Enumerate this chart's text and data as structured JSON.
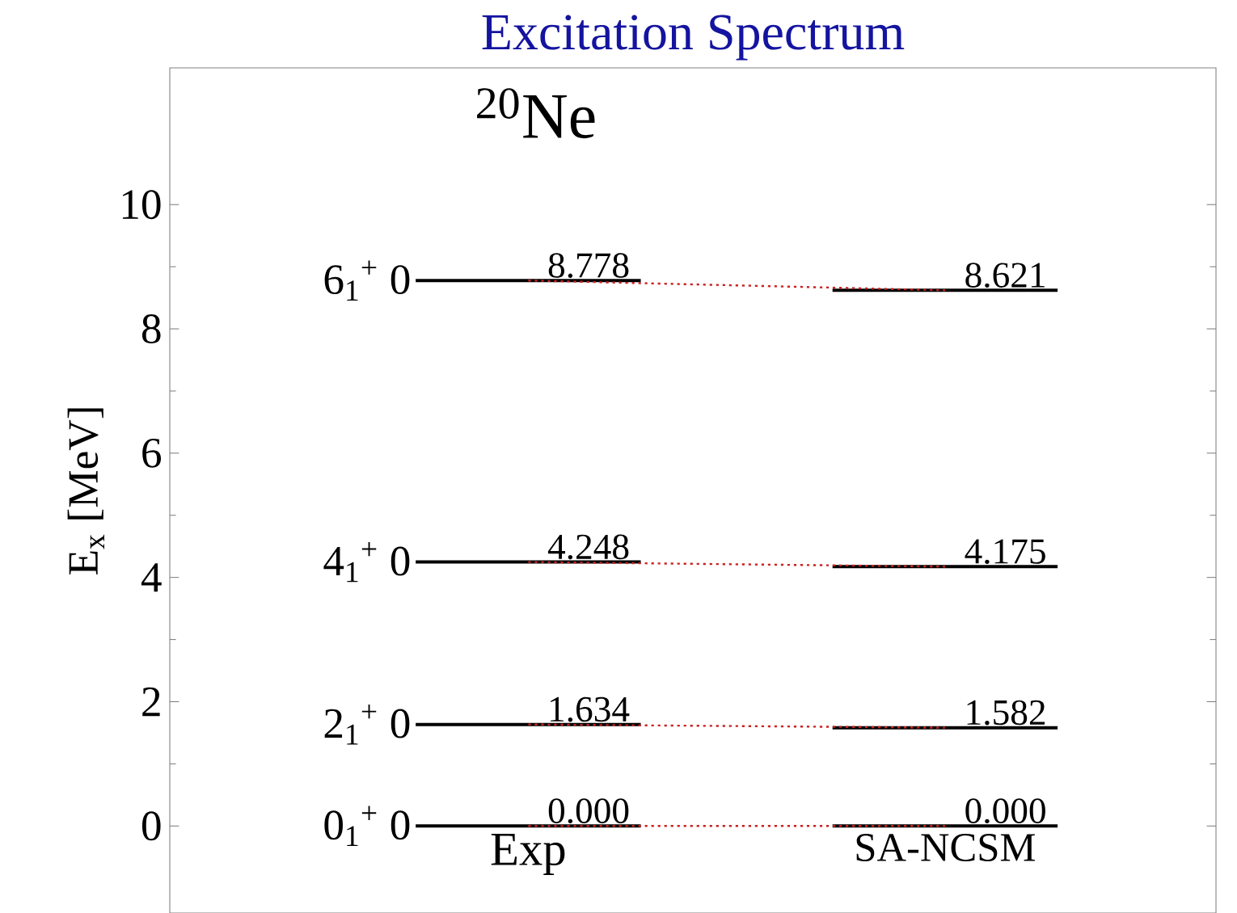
{
  "chart_data": {
    "type": "line",
    "title": "Excitation Spectrum",
    "subtitle": "$^{20}$Ne",
    "ylabel": "E$_{x}$ [MeV]",
    "categories": [
      "Exp",
      "SA-NCSM"
    ],
    "ylim": [
      -1.4,
      12.2
    ],
    "yticks": [
      0,
      2,
      4,
      6,
      8,
      10
    ],
    "line_style": "dotted",
    "series": [
      {
        "name": "0$_{1}$$^{+}$ 0",
        "color": "#cc2222",
        "values": [
          0.0,
          0.0
        ],
        "value_labels": [
          "0.000",
          "0.000"
        ]
      },
      {
        "name": "2$_{1}$$^{+}$ 0",
        "color": "#cc2222",
        "values": [
          1.634,
          1.582
        ],
        "value_labels": [
          "1.634",
          "1.582"
        ]
      },
      {
        "name": "4$_{1}$$^{+}$ 0",
        "color": "#cc2222",
        "values": [
          4.248,
          4.175
        ],
        "value_labels": [
          "4.248",
          "4.175"
        ]
      },
      {
        "name": "6$_{1}$$^{+}$ 0",
        "color": "#cc2222",
        "values": [
          8.778,
          8.621
        ],
        "value_labels": [
          "8.778",
          "8.621"
        ]
      }
    ]
  }
}
